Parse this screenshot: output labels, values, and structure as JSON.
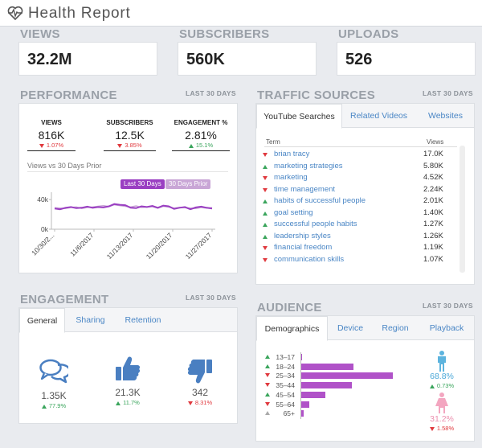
{
  "app": {
    "title": "Health Report"
  },
  "kpis": [
    {
      "label": "VIEWS",
      "value": "32.2M"
    },
    {
      "label": "SUBSCRIBERS",
      "value": "560K"
    },
    {
      "label": "UPLOADS",
      "value": "526"
    }
  ],
  "performance": {
    "title": "PERFORMANCE",
    "period": "LAST 30 DAYS",
    "metrics": [
      {
        "label": "VIEWS",
        "value": "816K",
        "change": "1.07%",
        "direction": "down"
      },
      {
        "label": "SUBSCRIBERS",
        "value": "12.5K",
        "change": "3.85%",
        "direction": "down"
      },
      {
        "label": "ENGAGEMENT %",
        "value": "2.81%",
        "change": "15.1%",
        "direction": "up"
      }
    ],
    "chart_title": "Views vs 30 Days Prior",
    "legend": [
      "Last 30 Days",
      "30 Days Prior"
    ]
  },
  "chart_data": {
    "type": "line",
    "title": "Views vs 30 Days Prior",
    "y_ticks": [
      "40k",
      "0k"
    ],
    "ylim": [
      0,
      50000
    ],
    "x_tick_labels": [
      "10/30/2...",
      "11/6/2017",
      "11/13/2017",
      "11/20/2017",
      "11/27/2017"
    ],
    "series": [
      {
        "name": "Last 30 Days",
        "color": "#9a3fc2",
        "values": [
          28000,
          27000,
          29000,
          30000,
          28500,
          29000,
          30500,
          29000,
          30000,
          29500,
          31000,
          34000,
          33000,
          32500,
          29000,
          28500,
          31000,
          30000,
          31500,
          29000,
          32000,
          31000,
          27500,
          29000,
          30000,
          27000,
          29500,
          30500,
          29000,
          28000
        ]
      },
      {
        "name": "30 Days Prior",
        "color": "#c9a6d6",
        "values": [
          29000,
          28500,
          28000,
          29500,
          30000,
          28000,
          29500,
          30000,
          31000,
          32000,
          30500,
          33000,
          32000,
          31000,
          30000,
          31500,
          29500,
          30000,
          30500,
          28500,
          31000,
          30000,
          28500,
          29500,
          29000,
          28500,
          28000,
          29500,
          28500,
          29000
        ]
      }
    ]
  },
  "traffic": {
    "title": "TRAFFIC SOURCES",
    "period": "LAST 30 DAYS",
    "tabs": [
      "YouTube Searches",
      "Related Videos",
      "Websites"
    ],
    "col_term": "Term",
    "col_views": "Views",
    "rows": [
      {
        "term": "brian tracy",
        "views": "17.0K",
        "direction": "down"
      },
      {
        "term": "marketing strategies",
        "views": "5.80K",
        "direction": "up"
      },
      {
        "term": "marketing",
        "views": "4.52K",
        "direction": "down"
      },
      {
        "term": "time management",
        "views": "2.24K",
        "direction": "down"
      },
      {
        "term": "habits of successful people",
        "views": "2.01K",
        "direction": "up"
      },
      {
        "term": "goal setting",
        "views": "1.40K",
        "direction": "up"
      },
      {
        "term": "successful people habits",
        "views": "1.27K",
        "direction": "up"
      },
      {
        "term": "leadership styles",
        "views": "1.26K",
        "direction": "up"
      },
      {
        "term": "financial freedom",
        "views": "1.19K",
        "direction": "down"
      },
      {
        "term": "communication skills",
        "views": "1.07K",
        "direction": "down"
      }
    ]
  },
  "engagement": {
    "title": "ENGAGEMENT",
    "period": "LAST 30 DAYS",
    "tabs": [
      "General",
      "Sharing",
      "Retention"
    ],
    "items": [
      {
        "icon": "comments-icon",
        "value": "1.35K",
        "change": "77.9%",
        "direction": "up"
      },
      {
        "icon": "thumbs-up-icon",
        "value": "21.3K",
        "change": "11.7%",
        "direction": "up"
      },
      {
        "icon": "thumbs-down-icon",
        "value": "342",
        "change": "8.31%",
        "direction": "down"
      }
    ]
  },
  "audience": {
    "title": "AUDIENCE",
    "period": "LAST 30 DAYS",
    "tabs": [
      "Demographics",
      "Device",
      "Region",
      "Playback"
    ],
    "age_groups": [
      {
        "label": "13–17",
        "value": 0.3,
        "direction": "up"
      },
      {
        "label": "18–24",
        "value": 20.5,
        "direction": "up"
      },
      {
        "label": "25–34",
        "value": 35.7,
        "direction": "down"
      },
      {
        "label": "35–44",
        "value": 19.8,
        "direction": "down"
      },
      {
        "label": "45–54",
        "value": 9.5,
        "direction": "up"
      },
      {
        "label": "55–64",
        "value": 3.0,
        "direction": "down"
      },
      {
        "label": "65+",
        "value": 1.0,
        "direction": "neutral"
      }
    ],
    "male": {
      "pct": "68.8%",
      "change": "0.73%",
      "direction": "up"
    },
    "female": {
      "pct": "31.2%",
      "change": "1.58%",
      "direction": "down"
    }
  }
}
